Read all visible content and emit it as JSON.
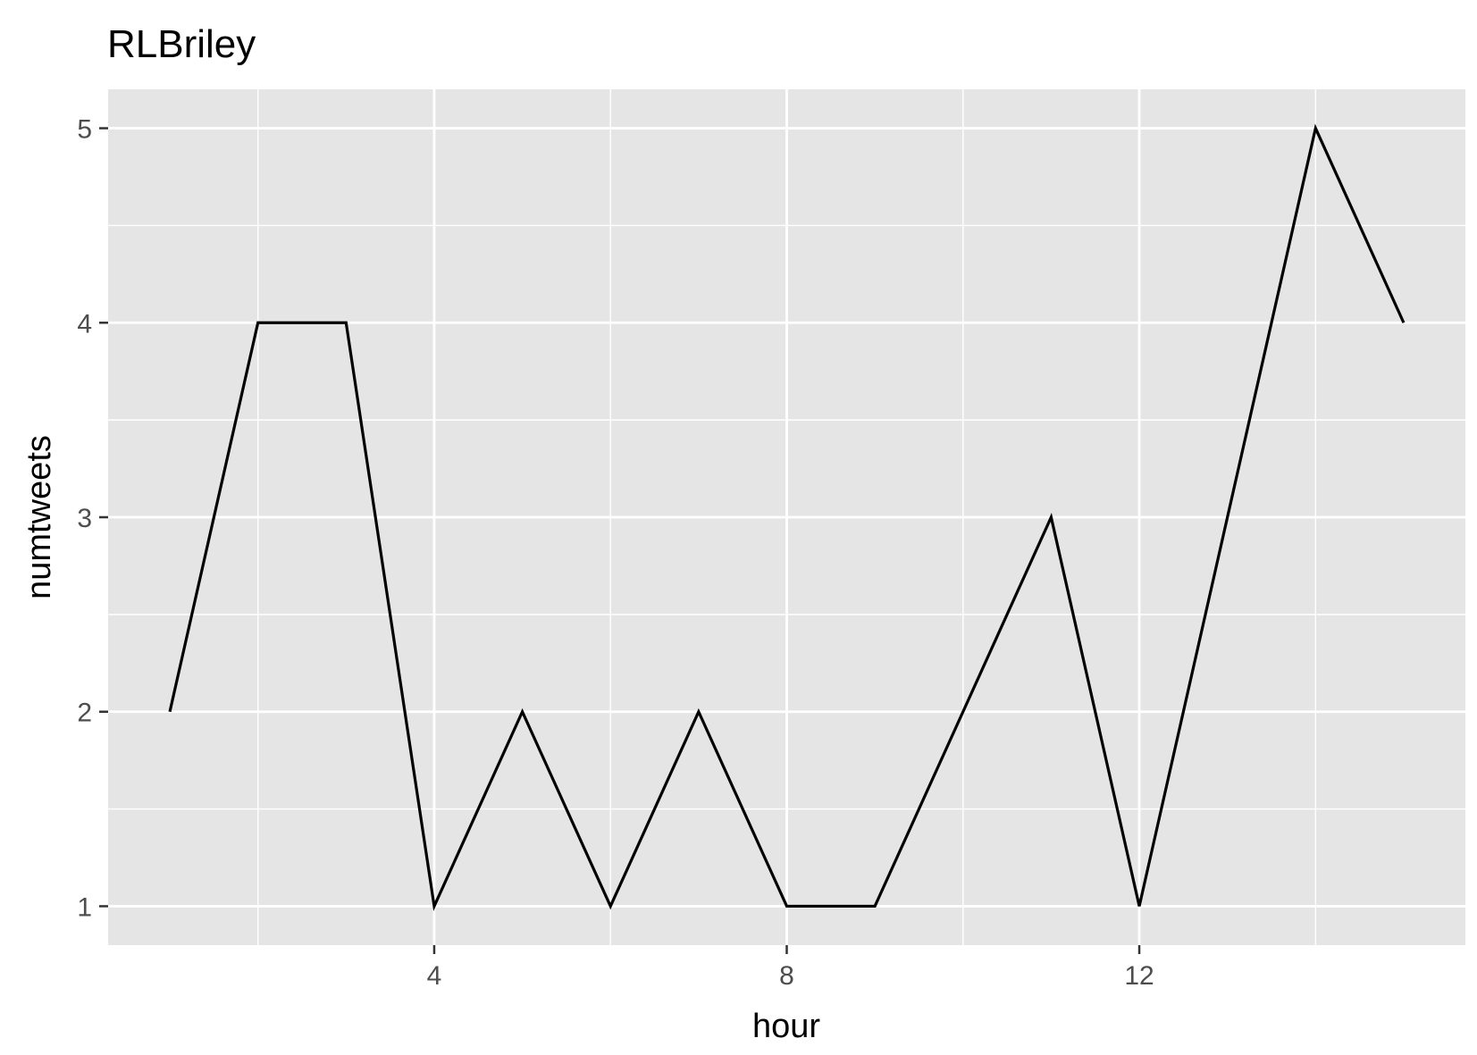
{
  "chart_data": {
    "type": "line",
    "title": "RLBriley",
    "xlabel": "hour",
    "ylabel": "numtweets",
    "x": [
      1,
      2,
      3,
      4,
      5,
      6,
      7,
      8,
      9,
      10,
      11,
      12,
      13,
      14,
      15
    ],
    "series": [
      {
        "values": [
          2,
          4,
          4,
          1,
          2,
          1,
          2,
          1,
          1,
          2,
          3,
          1,
          3,
          5,
          4
        ],
        "color": "#000000"
      }
    ],
    "xlim": [
      0.3,
      15.7
    ],
    "ylim": [
      0.8,
      5.2
    ],
    "x_ticks": [
      4,
      8,
      12
    ],
    "x_tick_labels": [
      "4",
      "8",
      "12"
    ],
    "x_minor_ticks": [
      2,
      6,
      10,
      14
    ],
    "y_ticks": [
      1,
      2,
      3,
      4,
      5
    ],
    "y_tick_labels": [
      "1",
      "2",
      "3",
      "4",
      "5"
    ],
    "y_minor_ticks": [
      1.5,
      2.5,
      3.5,
      4.5
    ],
    "grid": true,
    "panel_background": "#e5e5e5",
    "grid_color": "#ffffff"
  }
}
